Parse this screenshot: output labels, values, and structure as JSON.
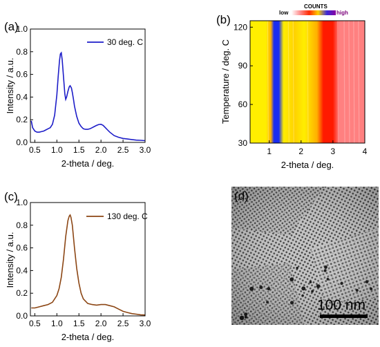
{
  "figure": {
    "panel_labels": [
      "(a)",
      "(b)",
      "(c)",
      "(d)"
    ]
  },
  "chart_data": [
    {
      "panel": "(a)",
      "type": "line",
      "xlabel": "2-theta / deg.",
      "ylabel": "Intensity / a.u.",
      "xlim": [
        0.4,
        3.0
      ],
      "ylim": [
        0.0,
        1.0
      ],
      "xticks": [
        "0.5",
        "1.0",
        "1.5",
        "2.0",
        "2.5",
        "3.0"
      ],
      "yticks": [
        "0.0",
        "0.2",
        "0.4",
        "0.6",
        "0.8",
        "1.0"
      ],
      "legend_position": "top-right",
      "series": [
        {
          "name": "30 deg. C",
          "color": "#1c1cc8",
          "x": [
            0.42,
            0.45,
            0.5,
            0.55,
            0.6,
            0.65,
            0.7,
            0.75,
            0.8,
            0.85,
            0.9,
            0.95,
            1.0,
            1.03,
            1.06,
            1.08,
            1.1,
            1.12,
            1.15,
            1.18,
            1.2,
            1.22,
            1.25,
            1.28,
            1.3,
            1.33,
            1.35,
            1.38,
            1.4,
            1.45,
            1.5,
            1.55,
            1.6,
            1.65,
            1.7,
            1.75,
            1.8,
            1.85,
            1.9,
            1.95,
            2.0,
            2.05,
            2.1,
            2.15,
            2.2,
            2.3,
            2.4,
            2.5,
            2.6,
            2.7,
            2.8,
            2.9,
            3.0
          ],
          "y": [
            0.19,
            0.13,
            0.1,
            0.09,
            0.09,
            0.095,
            0.1,
            0.11,
            0.12,
            0.13,
            0.16,
            0.24,
            0.42,
            0.58,
            0.72,
            0.78,
            0.79,
            0.73,
            0.58,
            0.43,
            0.38,
            0.4,
            0.45,
            0.49,
            0.5,
            0.48,
            0.44,
            0.37,
            0.32,
            0.23,
            0.17,
            0.14,
            0.12,
            0.115,
            0.115,
            0.12,
            0.13,
            0.14,
            0.15,
            0.158,
            0.16,
            0.15,
            0.13,
            0.11,
            0.09,
            0.06,
            0.045,
            0.035,
            0.03,
            0.025,
            0.02,
            0.018,
            0.015
          ]
        }
      ]
    },
    {
      "panel": "(b)",
      "type": "heatmap",
      "xlabel": "2-theta / deg.",
      "ylabel": "Temperature / deg. C",
      "xlim": [
        0.4,
        4.0
      ],
      "ylim": [
        30,
        125
      ],
      "xticks": [
        "1",
        "2",
        "3",
        "4"
      ],
      "yticks": [
        "30",
        "60",
        "90",
        "120"
      ],
      "colorbar": {
        "title": "COUNTS",
        "low_label": "low",
        "high_label": "high",
        "position": "top-right",
        "colors": [
          "#ffffff",
          "#ff8a8a",
          "#ff2a00",
          "#ffd000",
          "#3a2ad8",
          "#8a00a0"
        ]
      },
      "bands": [
        {
          "x": 0.4,
          "level": "yellow"
        },
        {
          "x": 0.9,
          "level": "yellow"
        },
        {
          "x": 1.05,
          "level": "orange"
        },
        {
          "x": 1.15,
          "level": "blue"
        },
        {
          "x": 1.3,
          "level": "blue"
        },
        {
          "x": 1.45,
          "level": "yellow"
        },
        {
          "x": 1.8,
          "level": "gold"
        },
        {
          "x": 2.1,
          "level": "yellow"
        },
        {
          "x": 2.5,
          "level": "orange"
        },
        {
          "x": 2.7,
          "level": "red"
        },
        {
          "x": 3.0,
          "level": "red"
        },
        {
          "x": 3.2,
          "level": "pink"
        },
        {
          "x": 4.0,
          "level": "pink"
        }
      ]
    },
    {
      "panel": "(c)",
      "type": "line",
      "xlabel": "2-theta / deg.",
      "ylabel": "Intensity / a.u.",
      "xlim": [
        0.4,
        3.0
      ],
      "ylim": [
        0.0,
        1.0
      ],
      "xticks": [
        "0.5",
        "1.0",
        "1.5",
        "2.0",
        "2.5",
        "3.0"
      ],
      "yticks": [
        "0.0",
        "0.2",
        "0.4",
        "0.6",
        "0.8",
        "1.0"
      ],
      "legend_position": "top-right",
      "series": [
        {
          "name": "130 deg. C",
          "color": "#8b4513",
          "x": [
            0.42,
            0.5,
            0.6,
            0.7,
            0.8,
            0.9,
            1.0,
            1.05,
            1.1,
            1.15,
            1.2,
            1.25,
            1.28,
            1.3,
            1.32,
            1.35,
            1.4,
            1.45,
            1.5,
            1.55,
            1.6,
            1.7,
            1.8,
            1.9,
            2.0,
            2.1,
            2.2,
            2.3,
            2.4,
            2.5,
            2.6,
            2.7,
            2.8,
            2.9,
            3.0
          ],
          "y": [
            0.07,
            0.07,
            0.08,
            0.09,
            0.1,
            0.12,
            0.18,
            0.24,
            0.34,
            0.5,
            0.7,
            0.84,
            0.88,
            0.89,
            0.87,
            0.8,
            0.6,
            0.42,
            0.29,
            0.2,
            0.15,
            0.11,
            0.1,
            0.095,
            0.1,
            0.1,
            0.09,
            0.08,
            0.06,
            0.04,
            0.03,
            0.02,
            0.015,
            0.01,
            0.008
          ]
        }
      ]
    },
    {
      "panel": "(d)",
      "type": "image",
      "scale_bar_label": "100 nm"
    }
  ]
}
